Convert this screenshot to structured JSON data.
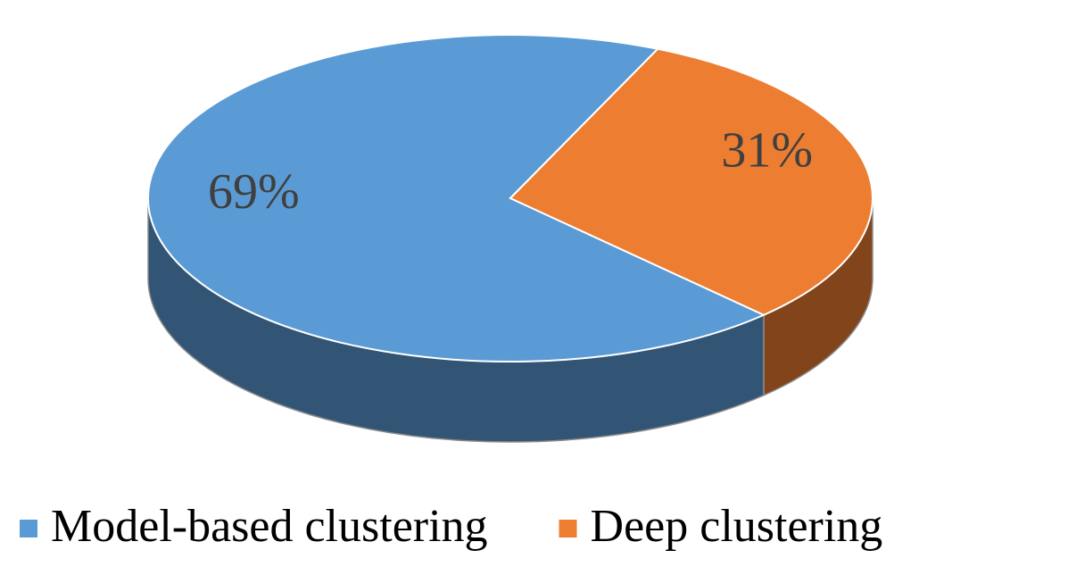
{
  "chart_data": {
    "type": "pie",
    "categories": [
      "Model-based clustering",
      "Deep clustering"
    ],
    "values": [
      69,
      31
    ],
    "value_labels": [
      "69%",
      "31%"
    ],
    "colors": [
      "#5b9bd5",
      "#ed7d31"
    ],
    "legend": "bottom"
  }
}
